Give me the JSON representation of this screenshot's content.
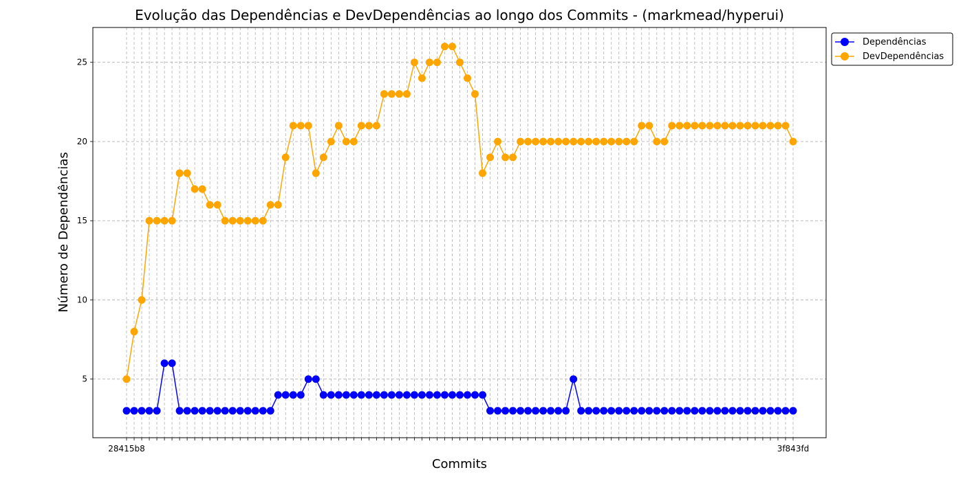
{
  "chart_data": {
    "type": "line",
    "title": "Evolução das Dependências e DevDependências ao longo dos Commits - (markmead/hyperui)",
    "xlabel": "Commits",
    "ylabel": "Número de Dependências",
    "first_tick_label": "28415b8",
    "last_tick_label": "3f843fd",
    "yticks": [
      5,
      10,
      15,
      20,
      25
    ],
    "ylim": [
      1.3,
      27.2
    ],
    "grid": true,
    "legend_position": "top-right outside",
    "series": [
      {
        "name": "Dependências",
        "color": "#0000ff",
        "values": [
          3,
          3,
          3,
          3,
          3,
          6,
          6,
          3,
          3,
          3,
          3,
          3,
          3,
          3,
          3,
          3,
          3,
          3,
          3,
          3,
          4,
          4,
          4,
          4,
          5,
          5,
          4,
          4,
          4,
          4,
          4,
          4,
          4,
          4,
          4,
          4,
          4,
          4,
          4,
          4,
          4,
          4,
          4,
          4,
          4,
          4,
          4,
          4,
          3,
          3,
          3,
          3,
          3,
          3,
          3,
          3,
          3,
          3,
          3,
          5,
          3,
          3,
          3,
          3,
          3,
          3,
          3,
          3,
          3,
          3,
          3,
          3,
          3,
          3,
          3,
          3,
          3,
          3,
          3,
          3,
          3,
          3,
          3,
          3,
          3,
          3,
          3,
          3,
          3
        ]
      },
      {
        "name": "DevDependências",
        "color": "#ffa500",
        "values": [
          5,
          8,
          10,
          15,
          15,
          15,
          15,
          18,
          18,
          17,
          17,
          16,
          16,
          15,
          15,
          15,
          15,
          15,
          15,
          16,
          16,
          19,
          21,
          21,
          21,
          18,
          19,
          20,
          21,
          20,
          20,
          21,
          21,
          21,
          23,
          23,
          23,
          23,
          25,
          24,
          25,
          25,
          26,
          26,
          25,
          24,
          23,
          18,
          19,
          20,
          19,
          19,
          20,
          20,
          20,
          20,
          20,
          20,
          20,
          20,
          20,
          20,
          20,
          20,
          20,
          20,
          20,
          20,
          21,
          21,
          20,
          20,
          21,
          21,
          21,
          21,
          21,
          21,
          21,
          21,
          21,
          21,
          21,
          21,
          21,
          21,
          21,
          21,
          20
        ]
      }
    ]
  }
}
